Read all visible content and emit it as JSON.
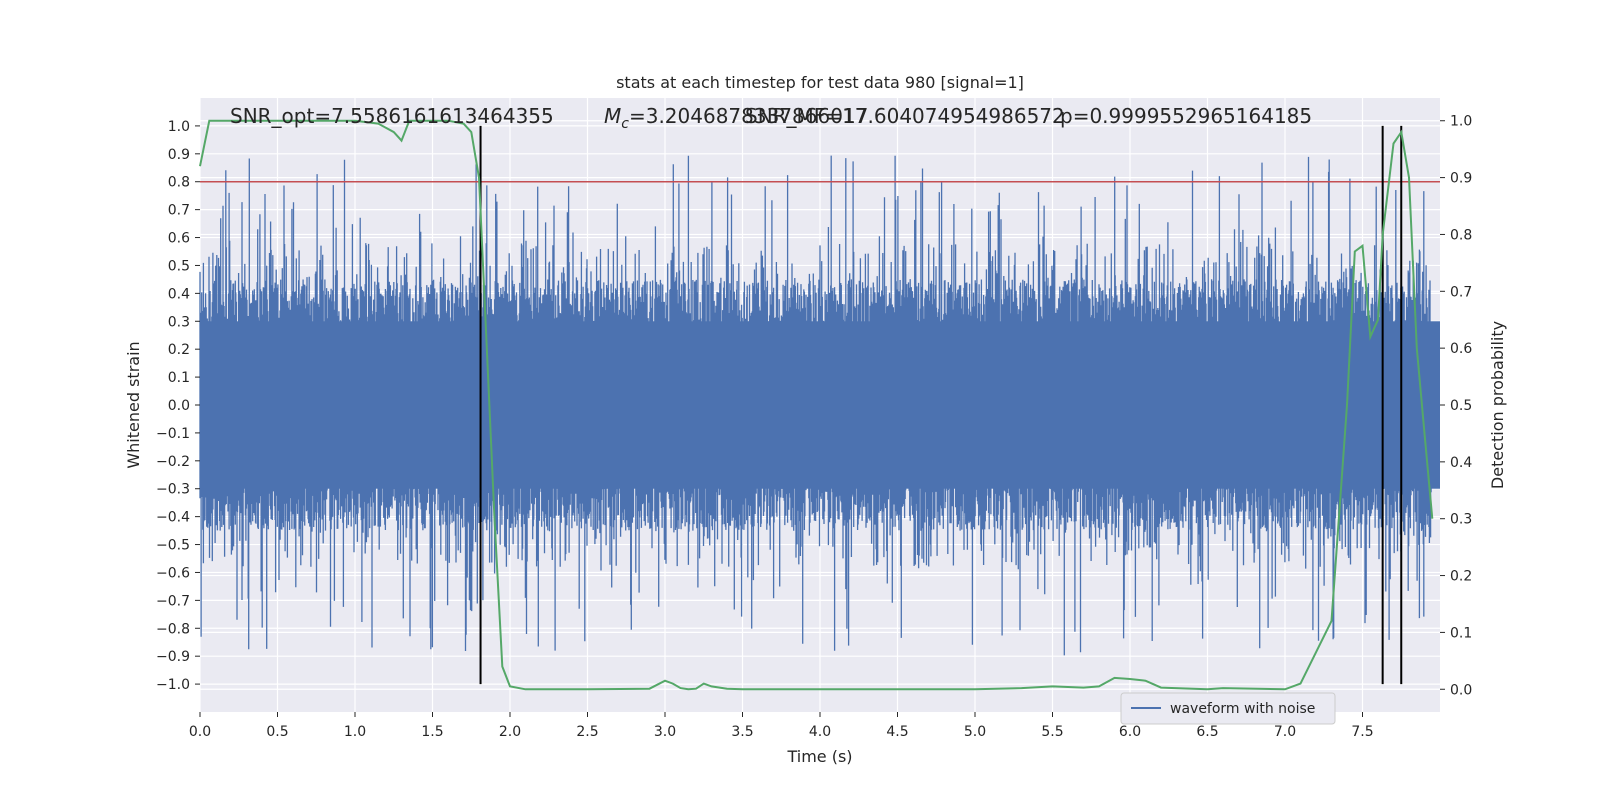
{
  "chart_data": {
    "type": "line",
    "title": "stats at each timestep for test data 980 [signal=1]",
    "xlabel": "Time (s)",
    "ylabel": "Whitened strain",
    "y2label": "Detection probability",
    "xlim": [
      0,
      8
    ],
    "ylim": [
      -1.1,
      1.1
    ],
    "y2lim": [
      -0.04,
      1.04
    ],
    "x_ticks": [
      "0.0",
      "0.5",
      "1.0",
      "1.5",
      "2.0",
      "2.5",
      "3.0",
      "3.5",
      "4.0",
      "4.5",
      "5.0",
      "5.5",
      "6.0",
      "6.5",
      "7.0",
      "7.5"
    ],
    "y_ticks": [
      "1.0",
      "0.9",
      "0.8",
      "0.7",
      "0.6",
      "0.5",
      "0.4",
      "0.3",
      "0.2",
      "0.1",
      "0.0",
      "-0.1",
      "-0.2",
      "-0.3",
      "-0.4",
      "-0.5",
      "-0.6",
      "-0.7",
      "-0.8",
      "-0.9",
      "-1.0"
    ],
    "y2_ticks": [
      "1.0",
      "0.9",
      "0.8",
      "0.7",
      "0.6",
      "0.5",
      "0.4",
      "0.3",
      "0.2",
      "0.1",
      "0.0"
    ],
    "grid": true,
    "legend": {
      "placement": "lower-right",
      "entries": [
        "waveform with noise"
      ]
    },
    "annotations": {
      "snr_opt": "SNR_opt=7.558616161346​4355",
      "mc": "=3.204687​8337866017",
      "mc_symbol": "M",
      "mc_sub": "c",
      "snr_mf": "SNR_MF=17.604074954986572",
      "p": "p=0.9999552965164185"
    },
    "threshold_y": 0.8,
    "vertical_lines_x": [
      1.81,
      7.63,
      7.75
    ],
    "colors": {
      "waveform": "#4c72b0",
      "probability": "#55a868",
      "threshold": "#c44e52",
      "vlines": "#000000",
      "background": "#eaeaf2"
    },
    "series": [
      {
        "name": "waveform with noise",
        "style": "dense noise, approx. ±0.4 envelope with peaks to ±0.9"
      },
      {
        "axis": "y2",
        "x": [
          0.0,
          0.06,
          0.1,
          0.2,
          0.5,
          1.0,
          1.15,
          1.25,
          1.3,
          1.35,
          1.4,
          1.5,
          1.6,
          1.7,
          1.75,
          1.8,
          1.85,
          1.9,
          1.95,
          2.0,
          2.1,
          2.5,
          2.9,
          3.0,
          3.05,
          3.1,
          3.15,
          3.2,
          3.25,
          3.3,
          3.4,
          3.5,
          4.0,
          4.5,
          5.0,
          5.3,
          5.5,
          5.7,
          5.8,
          5.9,
          6.0,
          6.1,
          6.2,
          6.5,
          6.6,
          7.0,
          7.1,
          7.3,
          7.4,
          7.45,
          7.5,
          7.55,
          7.6,
          7.63,
          7.7,
          7.75,
          7.8,
          7.85,
          7.9,
          7.95
        ],
        "y": [
          0.92,
          1.0,
          1.0,
          1.0,
          1.0,
          1.0,
          0.995,
          0.98,
          0.965,
          1.0,
          1.0,
          1.0,
          1.0,
          0.995,
          0.98,
          0.9,
          0.6,
          0.3,
          0.04,
          0.005,
          0.0,
          0.0,
          0.001,
          0.015,
          0.01,
          0.002,
          0.0,
          0.001,
          0.01,
          0.005,
          0.001,
          0.0,
          0.0,
          0.0,
          0.0,
          0.002,
          0.005,
          0.003,
          0.005,
          0.02,
          0.018,
          0.015,
          0.003,
          0.0,
          0.002,
          0.0,
          0.01,
          0.12,
          0.5,
          0.77,
          0.78,
          0.62,
          0.65,
          0.8,
          0.96,
          0.98,
          0.9,
          0.6,
          0.45,
          0.3
        ]
      }
    ]
  }
}
